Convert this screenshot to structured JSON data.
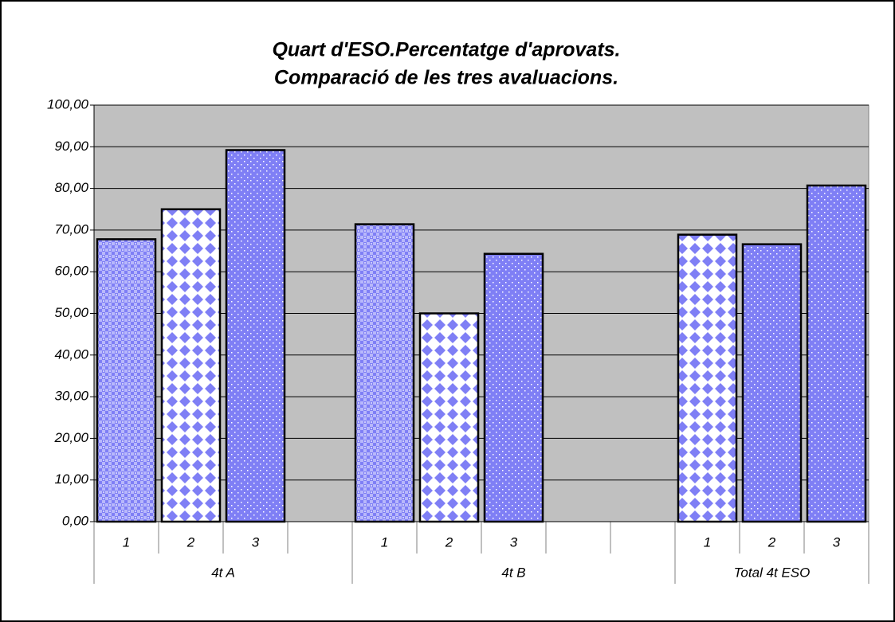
{
  "chart_data": {
    "type": "bar",
    "title": [
      "Quart d'ESO.Percentatge d'aprovats.",
      "Comparació de les tres avaluacions."
    ],
    "color": "#7f7ff5",
    "plot_background": "#c0c0c0",
    "grid": true,
    "ylim": [
      0,
      100
    ],
    "yticks": [
      {
        "value": 0,
        "label": "0,00"
      },
      {
        "value": 10,
        "label": "10,00"
      },
      {
        "value": 20,
        "label": "20,00"
      },
      {
        "value": 30,
        "label": "30,00"
      },
      {
        "value": 40,
        "label": "40,00"
      },
      {
        "value": 50,
        "label": "50,00"
      },
      {
        "value": 60,
        "label": "60,00"
      },
      {
        "value": 70,
        "label": "70,00"
      },
      {
        "value": 80,
        "label": "80,00"
      },
      {
        "value": 90,
        "label": "90,00"
      },
      {
        "value": 100,
        "label": "100,00"
      }
    ],
    "groups": [
      {
        "name": "4t A",
        "categories": [
          "1",
          "2",
          "3",
          null
        ],
        "values": [
          67.8,
          75.0,
          89.2,
          null
        ],
        "patterns": [
          "checker",
          "diamond",
          "dots",
          null
        ]
      },
      {
        "name": "4t B",
        "categories": [
          "1",
          "2",
          "3",
          null,
          null
        ],
        "values": [
          71.4,
          50.0,
          64.3,
          null,
          null
        ],
        "patterns": [
          "checker",
          "diamond",
          "dots",
          null,
          null
        ]
      },
      {
        "name": "Total 4t ESO",
        "categories": [
          "1",
          "2",
          "3"
        ],
        "values": [
          68.9,
          66.6,
          80.7
        ],
        "patterns": [
          "diamond",
          "dots",
          "dots"
        ]
      }
    ]
  }
}
